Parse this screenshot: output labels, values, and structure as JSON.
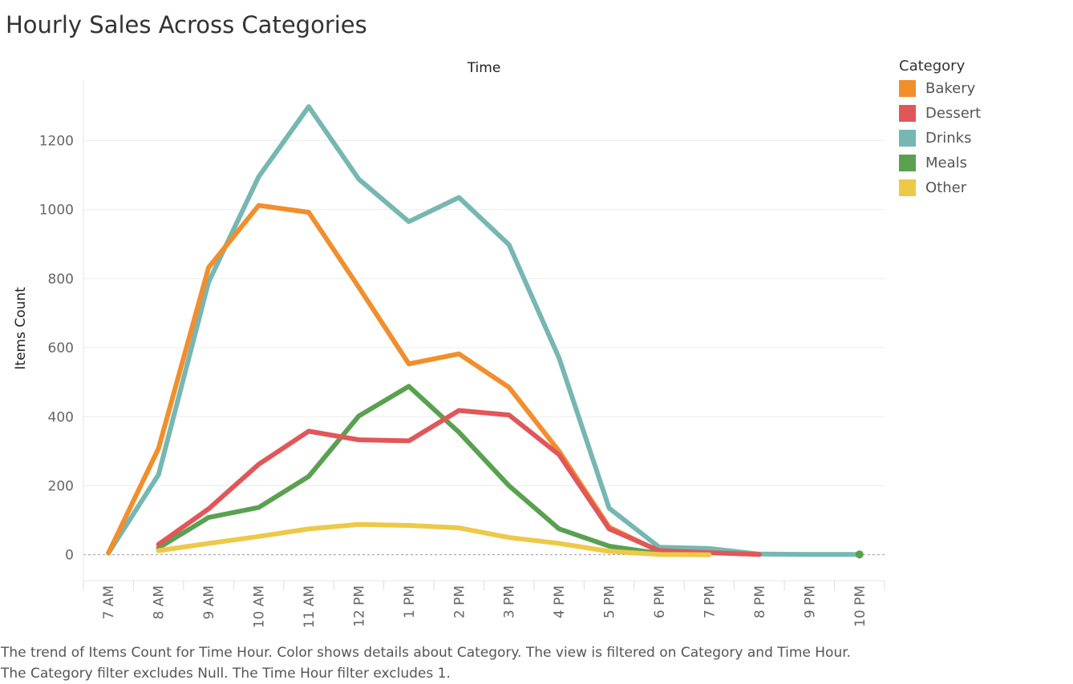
{
  "title": "Hourly Sales Across Categories",
  "caption": {
    "line1": "The trend of Items Count for Time Hour.  Color shows details about Category. The view is filtered on Category and Time Hour.",
    "line2": "The Category filter excludes Null. The Time Hour filter excludes 1."
  },
  "legend": {
    "title": "Category",
    "items": [
      {
        "label": "Bakery",
        "color": "#f28e2b"
      },
      {
        "label": "Dessert",
        "color": "#e15759"
      },
      {
        "label": "Drinks",
        "color": "#76b7b2"
      },
      {
        "label": "Meals",
        "color": "#59a14f"
      },
      {
        "label": "Other",
        "color": "#edc948"
      }
    ]
  },
  "chart_data": {
    "type": "line",
    "title": "Hourly Sales Across Categories",
    "xlabel": "Time",
    "ylabel": "Items Count",
    "x": [
      "7 AM",
      "8 AM",
      "9 AM",
      "10 AM",
      "11 AM",
      "12 PM",
      "1 PM",
      "2 PM",
      "3 PM",
      "4 PM",
      "5 PM",
      "6 PM",
      "7 PM",
      "8 PM",
      "9 PM",
      "10 PM"
    ],
    "yticks": [
      0,
      200,
      400,
      600,
      800,
      1000,
      1200
    ],
    "ylim": [
      -75,
      1375
    ],
    "grid": true,
    "legend_position": "right",
    "series": [
      {
        "name": "Drinks",
        "color": "#76b7b2",
        "values": [
          5,
          232,
          790,
          1095,
          1298,
          1088,
          965,
          1035,
          898,
          570,
          135,
          22,
          18,
          2,
          1,
          1
        ]
      },
      {
        "name": "Bakery",
        "color": "#f28e2b",
        "values": [
          5,
          308,
          832,
          1012,
          992,
          775,
          553,
          582,
          485,
          300,
          80,
          10,
          3,
          null,
          null,
          null
        ]
      },
      {
        "name": "Meals",
        "color": "#59a14f",
        "values": [
          null,
          20,
          108,
          137,
          227,
          402,
          488,
          355,
          200,
          75,
          25,
          4,
          null,
          null,
          null,
          1
        ]
      },
      {
        "name": "Dessert",
        "color": "#e15759",
        "values": [
          null,
          30,
          133,
          262,
          358,
          333,
          330,
          418,
          405,
          290,
          75,
          12,
          6,
          1,
          null,
          null
        ]
      },
      {
        "name": "Other",
        "color": "#edc948",
        "values": [
          null,
          12,
          33,
          53,
          75,
          88,
          85,
          78,
          50,
          33,
          10,
          1,
          0,
          null,
          null,
          null
        ]
      }
    ]
  }
}
